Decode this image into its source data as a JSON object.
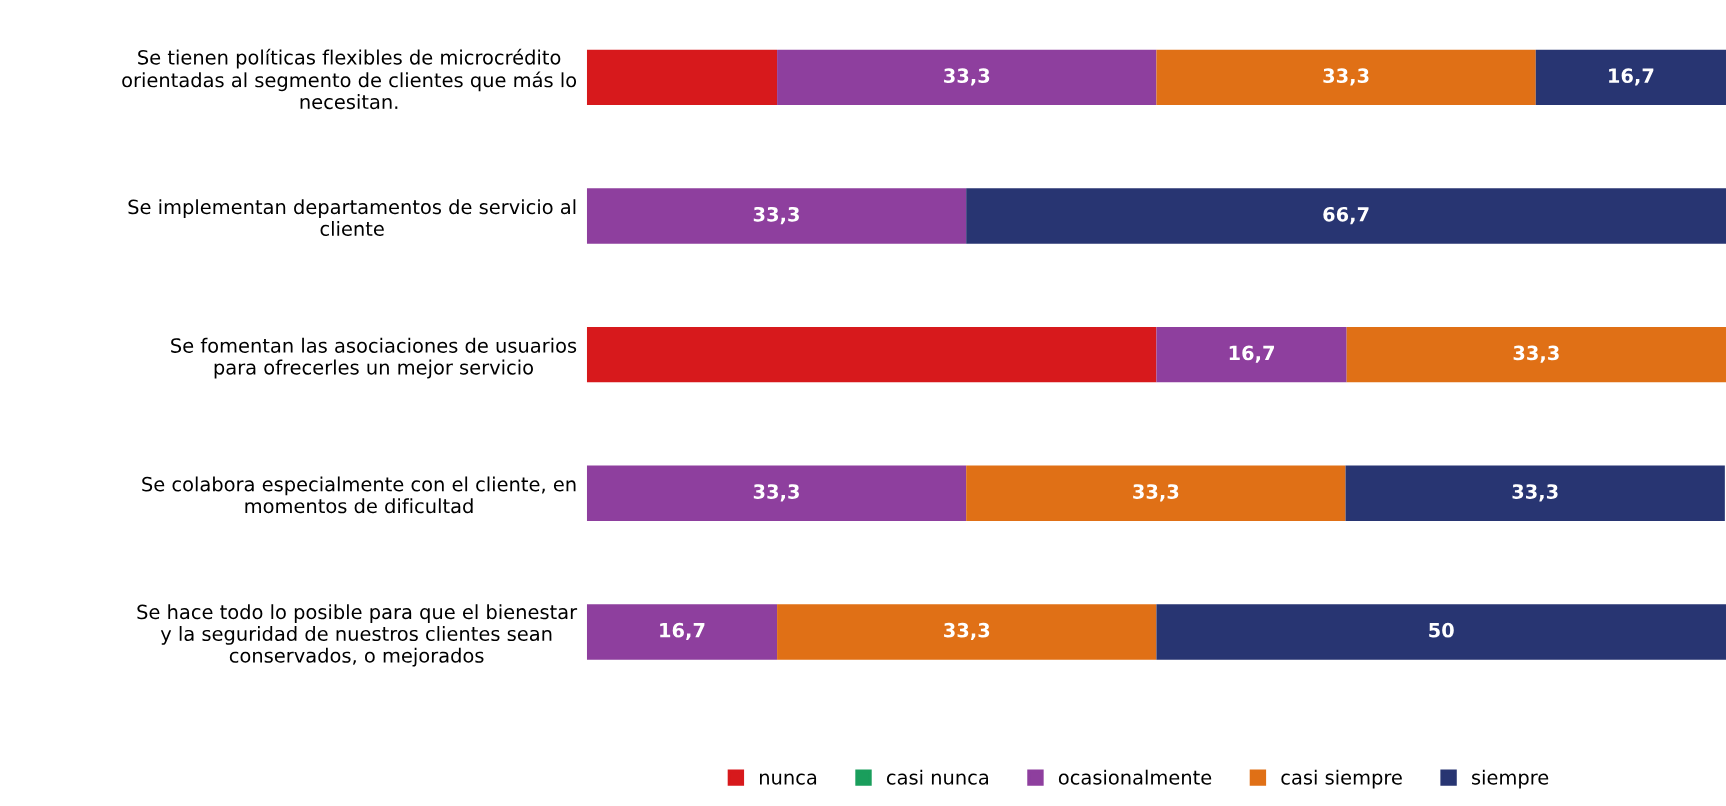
{
  "chart_data": {
    "type": "bar",
    "orientation": "horizontal",
    "stacked": true,
    "categories": [
      "Se tienen políticas flexibles de microcrédito\norientadas al segmento de clientes que más lo\nnecesitan.",
      "Se implementan departamentos de servicio al\ncliente",
      "Se fomentan las asociaciones de usuarios\npara ofrecerles un mejor servicio",
      "Se colabora especialmente con el cliente, en\nmomentos de dificultad",
      "Se hace todo lo posible para que el bienestar\ny la seguridad de nuestros clientes sean\nconservados, o mejorados"
    ],
    "series": [
      {
        "name": "nunca",
        "color": "#d7191c",
        "values": [
          16.7,
          null,
          50,
          null,
          null
        ],
        "value_labels": [
          null,
          null,
          null,
          null,
          null
        ]
      },
      {
        "name": "casi nunca",
        "color": "#1a9e5c",
        "values": [
          null,
          null,
          null,
          null,
          null
        ],
        "value_labels": [
          null,
          null,
          null,
          null,
          null
        ]
      },
      {
        "name": "ocasionalmente",
        "color": "#8e3f9e",
        "values": [
          33.3,
          33.3,
          16.7,
          33.3,
          16.7
        ],
        "value_labels": [
          "33,3",
          "33,3",
          "16,7",
          "33,3",
          "16,7"
        ]
      },
      {
        "name": "casi siempre",
        "color": "#e07016",
        "values": [
          33.3,
          null,
          33.3,
          33.3,
          33.3
        ],
        "value_labels": [
          "33,3",
          null,
          "33,3",
          "33,3",
          "33,3"
        ]
      },
      {
        "name": "siempre",
        "color": "#283572",
        "values": [
          16.7,
          66.7,
          null,
          33.3,
          50
        ],
        "value_labels": [
          "16,7",
          "66,7",
          null,
          "33,3",
          "50"
        ]
      }
    ],
    "xlim": [
      0,
      100
    ],
    "tick_labels": false,
    "grid": false,
    "legend": "bottom"
  }
}
